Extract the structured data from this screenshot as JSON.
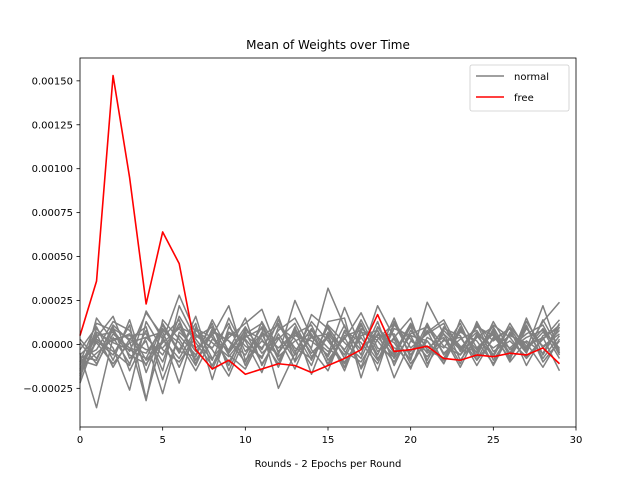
{
  "chart_data": {
    "type": "line",
    "title": "Mean of Weights over Time",
    "xlabel": "Rounds - 2 Epochs per Round",
    "ylabel": "",
    "xlim": [
      0,
      30
    ],
    "ylim": [
      -0.00047,
      0.00163
    ],
    "x_ticks": [
      0,
      5,
      10,
      15,
      20,
      25,
      30
    ],
    "x_tick_labels": [
      "0",
      "5",
      "10",
      "15",
      "20",
      "25",
      "30"
    ],
    "y_ticks": [
      -0.00025,
      0.0,
      0.00025,
      0.0005,
      0.00075,
      0.001,
      0.00125,
      0.0015
    ],
    "y_tick_labels": [
      "−0.00025",
      "0.00000",
      "0.00025",
      "0.00050",
      "0.00075",
      "0.00100",
      "0.00125",
      "0.00150"
    ],
    "grid": false,
    "legend_position": "top-right",
    "legend": [
      {
        "label": "normal",
        "color": "#808080"
      },
      {
        "label": "free",
        "color": "#ff0000"
      }
    ],
    "x": [
      0,
      1,
      2,
      3,
      4,
      5,
      6,
      7,
      8,
      9,
      10,
      11,
      12,
      13,
      14,
      15,
      16,
      17,
      18,
      19,
      20,
      21,
      22,
      23,
      24,
      25,
      26,
      27,
      28,
      29
    ],
    "series": [
      {
        "name": "free",
        "color": "#ff0000",
        "values": [
          5e-05,
          0.00036,
          0.00153,
          0.00095,
          0.00023,
          0.00064,
          0.00046,
          -3e-05,
          -0.00014,
          -9e-05,
          -0.00017,
          -0.00014,
          -0.00011,
          -0.00012,
          -0.00016,
          -0.00012,
          -8e-05,
          -3e-05,
          0.00017,
          -4e-05,
          -3e-05,
          -1e-05,
          -8e-05,
          -9e-05,
          -6e-05,
          -7e-05,
          -5e-05,
          -6e-05,
          -2e-05,
          -0.00011
        ]
      },
      {
        "name": "normal",
        "color": "#808080",
        "values": [
          -0.0001,
          0.00012,
          8e-05,
          -4e-05,
          0.00018,
          5e-05,
          -0.00022,
          0.0001,
          -8e-05,
          4e-05,
          0.00012,
          0.0002,
          -5e-05,
          8e-05,
          -2e-05,
          0.00032,
          0.0001,
          -6e-05,
          0.00022,
          4e-05,
          -9e-05,
          0.00024,
          6e-05,
          -3e-05,
          0.00011,
          2e-05,
          9e-05,
          -4e-05,
          0.00013,
          0.00024
        ]
      },
      {
        "name": "normal",
        "color": "#808080",
        "values": [
          -0.00018,
          2e-05,
          -6e-05,
          0.00011,
          -0.00031,
          4e-05,
          0.00014,
          -9e-05,
          6e-05,
          -0.00012,
          9e-05,
          -3e-05,
          0.00016,
          -0.0001,
          5e-05,
          -7e-05,
          0.00011,
          -0.00014,
          3e-05,
          0.00012,
          -6e-05,
          8e-05,
          -0.00011,
          0.00014,
          -2e-05,
          7e-05,
          -5e-05,
          0.0001,
          -8e-05,
          5e-05
        ]
      },
      {
        "name": "normal",
        "color": "#808080",
        "values": [
          -5e-05,
          -0.00036,
          4e-05,
          -0.00011,
          8e-05,
          -0.00015,
          0.00022,
          3e-05,
          -9e-05,
          0.00015,
          -4e-05,
          6e-05,
          -0.00013,
          0.0001,
          -0.00017,
          7e-05,
          -3e-05,
          0.00012,
          -8e-05,
          4e-05,
          0.00015,
          -0.00011,
          3e-05,
          -6e-05,
          0.00012,
          -9e-05,
          6e-05,
          -2e-05,
          9e-05,
          -4e-05
        ]
      },
      {
        "name": "normal",
        "color": "#808080",
        "values": [
          -0.0002,
          0.00015,
          2e-05,
          6e-05,
          -0.00012,
          0.00011,
          -5e-05,
          0.00016,
          -0.00014,
          6e-05,
          3e-05,
          -8e-05,
          0.00014,
          -4e-05,
          9e-05,
          -0.00012,
          5e-05,
          8e-05,
          -0.00015,
          0.00013,
          -2e-05,
          6e-05,
          0.00012,
          -9e-05,
          4e-05,
          0.0001,
          -7e-05,
          0.00013,
          -2e-05,
          8e-05
        ]
      },
      {
        "name": "normal",
        "color": "#808080",
        "values": [
          3e-05,
          -8e-05,
          0.0001,
          -0.00015,
          4e-05,
          -6e-05,
          0.00012,
          -0.00011,
          8e-05,
          2e-05,
          -0.0001,
          0.00013,
          -4e-05,
          6e-05,
          0.00011,
          -9e-05,
          4e-05,
          -0.00013,
          0.0001,
          -5e-05,
          0.00012,
          -3e-05,
          -8e-05,
          9e-05,
          -5e-05,
          0.00011,
          4e-05,
          -8e-05,
          3e-05,
          0.00011
        ]
      },
      {
        "name": "normal",
        "color": "#808080",
        "values": [
          -0.00012,
          6e-05,
          -0.00013,
          3e-05,
          0.0001,
          -0.0002,
          5e-05,
          -6e-05,
          0.00012,
          -0.00015,
          7e-05,
          -0.00011,
          3e-05,
          0.00012,
          -7e-05,
          4e-05,
          -0.00015,
          9e-05,
          2e-05,
          -0.0001,
          6e-05,
          0.0001,
          -5e-05,
          3e-05,
          8e-05,
          -6e-05,
          0.00012,
          -3e-05,
          7e-05,
          -2e-05
        ]
      },
      {
        "name": "normal",
        "color": "#808080",
        "values": [
          -8e-05,
          -3e-05,
          0.00013,
          8e-05,
          -9e-05,
          2e-05,
          0.00028,
          6e-05,
          -3e-05,
          -0.00018,
          4e-05,
          9e-05,
          -0.00025,
          -5e-05,
          0.00013,
          2e-05,
          -0.00011,
          5e-05,
          8e-05,
          -0.00019,
          2e-05,
          -4e-05,
          9e-05,
          5e-05,
          -0.00012,
          4e-05,
          -2e-05,
          6e-05,
          0.00011,
          -6e-05
        ]
      },
      {
        "name": "normal",
        "color": "#808080",
        "values": [
          -0.00015,
          9e-05,
          -2e-05,
          -0.00026,
          0.00013,
          -3e-05,
          -0.0001,
          4e-05,
          0.0001,
          -6e-05,
          -0.00014,
          5e-05,
          0.00011,
          -2e-05,
          -8e-05,
          0.0001,
          -4e-05,
          -0.0001,
          6e-05,
          1e-05,
          -0.00013,
          4e-05,
          -2e-05,
          0.00012,
          -9e-05,
          3e-05,
          9e-05,
          -0.00012,
          5e-05,
          9e-05
        ]
      },
      {
        "name": "normal",
        "color": "#808080",
        "values": [
          1e-05,
          -0.00011,
          6e-05,
          -2e-05,
          -5e-05,
          9e-05,
          -3e-05,
          0.00012,
          -0.0002,
          0.0001,
          -1e-05,
          -7e-05,
          8e-05,
          0.00015,
          -3e-05,
          -0.00015,
          8e-05,
          1e-05,
          -0.00011,
          9e-05,
          5e-05,
          -0.00013,
          0.0001,
          -1e-05,
          -4e-05,
          8e-05,
          -0.0001,
          2e-05,
          -5e-05,
          0.00012
        ]
      },
      {
        "name": "normal",
        "color": "#808080",
        "values": [
          -0.00022,
          4e-05,
          0.00016,
          -8e-05,
          2e-05,
          -0.00028,
          7e-05,
          -2e-05,
          5e-05,
          0.00022,
          -9e-05,
          2e-05,
          -6e-05,
          0.00025,
          4e-05,
          -4e-05,
          3e-05,
          0.00018,
          -2e-05,
          -7e-05,
          0.00011,
          -2e-05,
          4e-05,
          -0.00013,
          6e-05,
          -2e-05,
          5e-05,
          1e-05,
          -0.00013,
          3e-05
        ]
      },
      {
        "name": "normal",
        "color": "#808080",
        "values": [
          -3e-05,
          0.0001,
          -9e-05,
          0.00014,
          -0.00016,
          8e-05,
          1e-05,
          -0.00015,
          3e-05,
          -3e-05,
          0.00015,
          -0.00012,
          6e-05,
          -9e-05,
          0.00017,
          9e-05,
          -8e-05,
          0.00011,
          -6e-05,
          0.00015,
          -8e-05,
          0.00012,
          -6e-05,
          7e-05,
          2e-05,
          -0.00011,
          7e-05,
          -5e-05,
          0.00014,
          -3e-05
        ]
      },
      {
        "name": "normal",
        "color": "#808080",
        "values": [
          -0.00013,
          -5e-05,
          3e-05,
          5e-05,
          6e-05,
          -0.0001,
          0.00016,
          1e-05,
          -0.00012,
          7e-05,
          2e-05,
          -0.00016,
          0.0001,
          3e-05,
          -0.00012,
          0.00013,
          0.00015,
          -0.00019,
          0.0001,
          -2e-05,
          -4e-05,
          7e-05,
          0.00014,
          -4e-05,
          0.0001,
          5e-05,
          -8e-05,
          9e-05,
          -1e-05,
          6e-05
        ]
      },
      {
        "name": "normal",
        "color": "#808080",
        "values": [
          -6e-05,
          3e-05,
          -4e-05,
          -0.00012,
          0.00019,
          3e-05,
          -8e-05,
          9e-05,
          4e-05,
          -0.0001,
          6e-05,
          0.00012,
          -9e-05,
          5e-05,
          2e-05,
          -6e-05,
          0.00021,
          -2e-05,
          5e-05,
          6e-05,
          -0.00011,
          2e-05,
          -9e-05,
          0.0001,
          -7e-05,
          0.00013,
          -3e-05,
          4e-05,
          8e-05,
          -8e-05
        ]
      },
      {
        "name": "normal",
        "color": "#808080",
        "values": [
          -0.00017,
          7e-05,
          1e-05,
          -3e-05,
          -8e-05,
          0.00012,
          -4e-05,
          -7e-05,
          0.00014,
          -4e-05,
          0.0001,
          -5e-05,
          4e-05,
          -0.00014,
          8e-05,
          -2e-05,
          -0.0001,
          4e-05,
          -9e-05,
          0.00011,
          3e-05,
          -7e-05,
          6e-05,
          -0.00011,
          0.00013,
          -4e-05,
          2e-05,
          -7e-05,
          3e-05,
          0.00014
        ]
      },
      {
        "name": "normal",
        "color": "#808080",
        "values": [
          -9e-05,
          -0.00012,
          9e-05,
          3e-05,
          -3e-05,
          -2e-05,
          0.0001,
          5e-05,
          -2e-05,
          0.00012,
          -0.00012,
          7e-05,
          -2e-05,
          7e-05,
          -9e-05,
          0.00011,
          1e-05,
          -8e-05,
          0.00013,
          -0.00012,
          8e-05,
          -5e-05,
          2e-05,
          4e-05,
          -9e-05,
          9e-05,
          -5e-05,
          0.00011,
          -0.0001,
          2e-05
        ]
      },
      {
        "name": "normal",
        "color": "#808080",
        "values": [
          -0.00011,
          1e-05,
          -0.00011,
          1e-05,
          4e-05,
          7e-05,
          -0.00013,
          8e-05,
          1e-05,
          -7e-05,
          5e-05,
          -2e-05,
          0.00012,
          -6e-05,
          4e-05,
          6e-05,
          -6e-05,
          0.00014,
          -4e-05,
          3e-05,
          -0.00014,
          0.00011,
          -1e-05,
          -6e-05,
          5e-05,
          -7e-05,
          0.0001,
          -1e-05,
          4e-05,
          -0.00015
        ]
      },
      {
        "name": "normal",
        "color": "#808080",
        "values": [
          -0.00014,
          5e-05,
          7e-05,
          -6e-05,
          -0.00011,
          1e-05,
          9e-05,
          -4e-05,
          7e-05,
          2e-05,
          -6e-05,
          0.0001,
          -7e-05,
          2e-05,
          6e-05,
          -0.00011,
          7e-05,
          -3e-05,
          8e-05,
          -8e-05,
          5e-05,
          2e-05,
          -0.00011,
          8e-05,
          -3e-05,
          6e-05,
          -9e-05,
          0.00015,
          -6e-05,
          0.0001
        ]
      },
      {
        "name": "normal",
        "color": "#808080",
        "values": [
          -7e-05,
          -9e-05,
          0.00011,
          2e-05,
          -0.00032,
          0.00014,
          3e-05,
          -0.00012,
          9e-05,
          -5e-05,
          8e-05,
          3e-05,
          -0.00011,
          9e-05,
          -5e-05,
          5e-05,
          -0.00013,
          7e-05,
          4e-05,
          -6e-05,
          0.0001,
          -9e-05,
          8e-05,
          -2e-05,
          7e-05,
          -0.00012,
          6e-05,
          -3e-05,
          0.00022,
          -5e-05
        ]
      }
    ]
  }
}
